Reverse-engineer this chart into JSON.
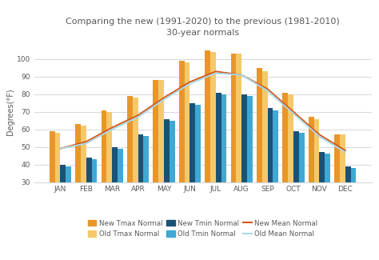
{
  "months": [
    "JAN",
    "FEB",
    "MAR",
    "APR",
    "MAY",
    "JUN",
    "JUL",
    "AUG",
    "SEP",
    "OCT",
    "NOV",
    "DEC"
  ],
  "new_tmax": [
    59,
    63,
    71,
    79,
    88,
    99,
    105,
    103,
    95,
    81,
    67,
    57
  ],
  "old_tmax": [
    58,
    62,
    70,
    78,
    88,
    98,
    104,
    103,
    93,
    80,
    66,
    57
  ],
  "new_tmin": [
    40,
    44,
    50,
    57,
    66,
    75,
    81,
    80,
    72,
    59,
    47,
    39
  ],
  "old_tmin": [
    39,
    43,
    49,
    56,
    65,
    74,
    80,
    79,
    71,
    58,
    46,
    38
  ],
  "new_mean": [
    49,
    53,
    61,
    68,
    78,
    87,
    93,
    91,
    83,
    70,
    57,
    48
  ],
  "old_mean": [
    49,
    52,
    60,
    67,
    77,
    86,
    92,
    91,
    82,
    69,
    56,
    47
  ],
  "title_line1": "Comparing the new (1991-2020) to the previous (1981-2010)",
  "title_line2": "30-year normals",
  "ylabel": "Degrees(°F)",
  "ylim": [
    30,
    110
  ],
  "yticks": [
    30,
    40,
    50,
    60,
    70,
    80,
    90,
    100
  ],
  "color_new_tmax": "#E8962A",
  "color_old_tmax": "#F5C96A",
  "color_new_tmin": "#1A5276",
  "color_old_tmin": "#3FA8D5",
  "color_new_mean": "#D4581A",
  "color_old_mean": "#A8D8EA",
  "title_color": "#595959",
  "axis_color": "#595959",
  "grid_color": "#D5D8DC",
  "bg_color": "#FFFFFF"
}
